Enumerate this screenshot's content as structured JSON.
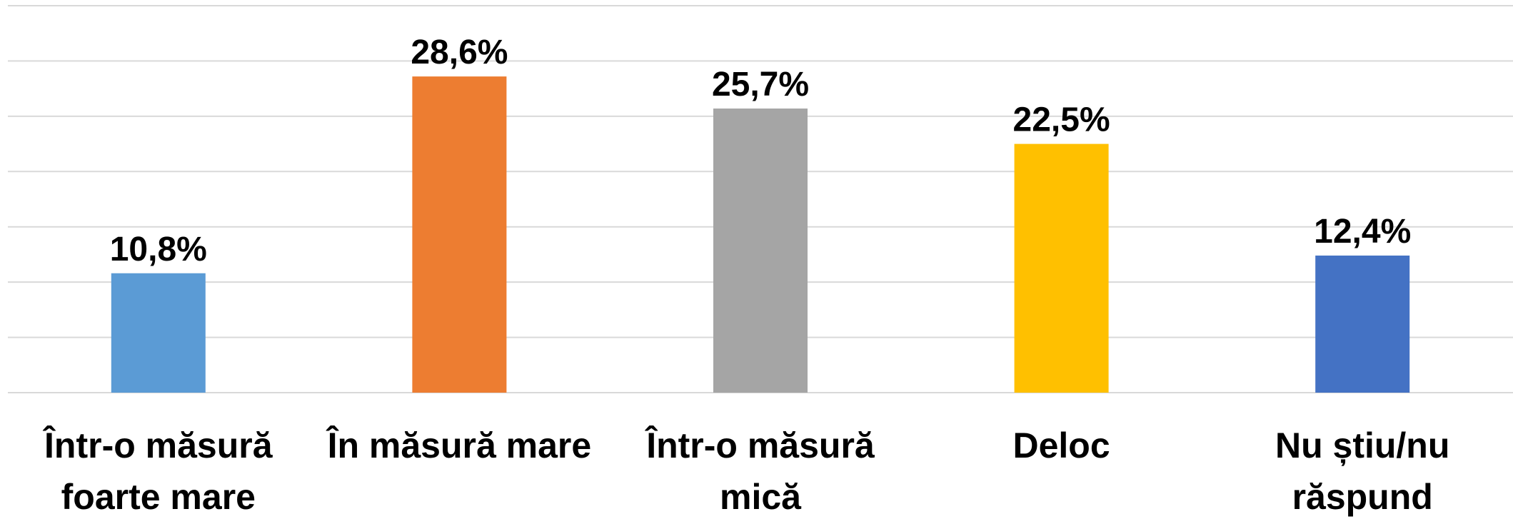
{
  "chart_data": {
    "type": "bar",
    "categories": [
      "Într-o măsură foarte mare",
      "În măsură mare",
      "Într-o măsură mică",
      "Deloc",
      "Nu știu/nu răspund"
    ],
    "values": [
      10.8,
      28.6,
      25.7,
      22.5,
      12.4
    ],
    "value_labels": [
      "10,8%",
      "28,6%",
      "25,7%",
      "22,5%",
      "12,4%"
    ],
    "colors": [
      "#5b9bd5",
      "#ed7d31",
      "#a5a5a5",
      "#ffc000",
      "#4472c4"
    ],
    "ylim": [
      0,
      35
    ],
    "yticks": [
      0,
      5,
      10,
      15,
      20,
      25,
      30,
      35
    ],
    "grid": true
  }
}
